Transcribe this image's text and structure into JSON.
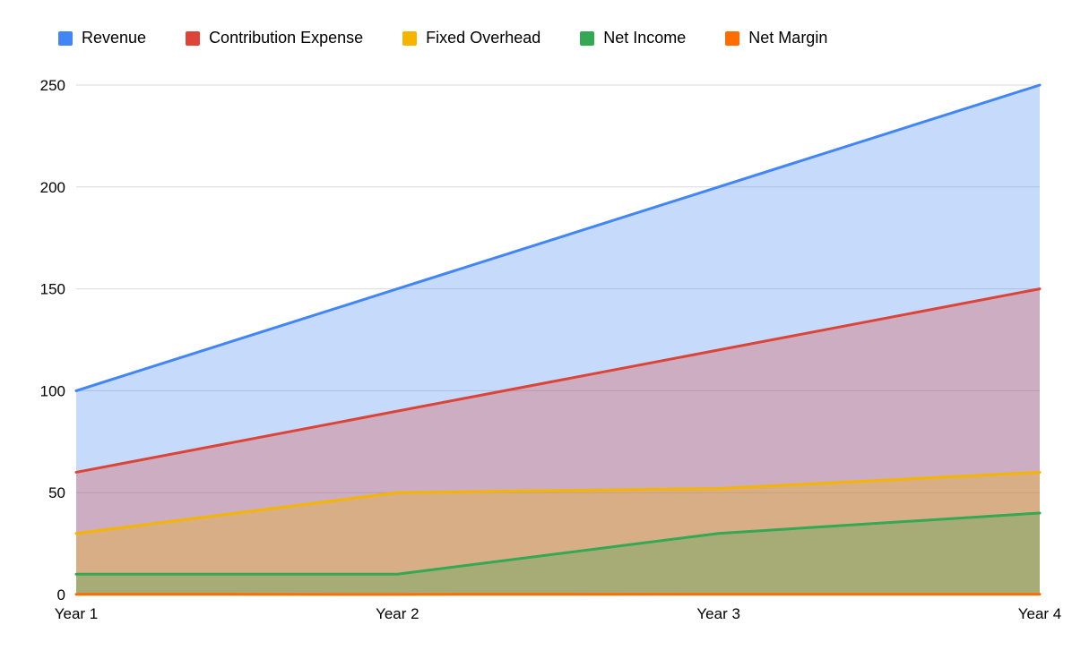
{
  "chart_data": {
    "type": "area",
    "title": "",
    "x": [
      "Year 1",
      "Year 2",
      "Year 3",
      "Year 4"
    ],
    "series": [
      {
        "name": "Revenue",
        "color": "#4285F4",
        "values": [
          100,
          150,
          200,
          250
        ]
      },
      {
        "name": "Contribution Expense",
        "color": "#DB4437",
        "values": [
          60,
          90,
          120,
          150
        ]
      },
      {
        "name": "Fixed Overhead",
        "color": "#F4B400",
        "values": [
          30,
          50,
          52,
          60
        ]
      },
      {
        "name": "Net Income",
        "color": "#34A853",
        "values": [
          10,
          10,
          30,
          40
        ]
      },
      {
        "name": "Net Margin",
        "color": "#FF6D00",
        "values": [
          0.1,
          0.07,
          0.15,
          0.16
        ]
      }
    ],
    "ylim": [
      0,
      250
    ],
    "yticks": [
      0,
      50,
      100,
      150,
      200,
      250
    ],
    "grid": true,
    "gridline_color": "#d9d9d9",
    "fill_opacity": 0.3,
    "line_width": 3,
    "legend_position": "top"
  }
}
